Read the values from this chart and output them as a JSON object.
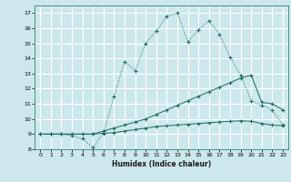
{
  "title": "",
  "xlabel": "Humidex (Indice chaleur)",
  "bg_color": "#cce8ec",
  "grid_color": "#ffffff",
  "line_color": "#1a6b5e",
  "xlim": [
    -0.5,
    23.5
  ],
  "ylim": [
    8,
    17.5
  ],
  "xticks": [
    0,
    1,
    2,
    3,
    4,
    5,
    6,
    7,
    8,
    9,
    10,
    11,
    12,
    13,
    14,
    15,
    16,
    17,
    18,
    19,
    20,
    21,
    22,
    23
  ],
  "yticks": [
    8,
    9,
    10,
    11,
    12,
    13,
    14,
    15,
    16,
    17
  ],
  "line1_x": [
    0,
    1,
    2,
    3,
    4,
    5,
    6,
    7,
    8,
    9,
    10,
    11,
    12,
    13,
    14,
    15,
    16,
    17,
    18,
    19,
    20,
    21,
    22,
    23
  ],
  "line1_y": [
    9,
    9,
    9,
    8.9,
    8.7,
    8.1,
    9.1,
    11.5,
    13.8,
    13.2,
    15.0,
    15.8,
    16.8,
    17.0,
    15.1,
    15.9,
    16.5,
    15.6,
    14.1,
    12.9,
    11.2,
    10.9,
    10.6,
    9.6
  ],
  "line2_x": [
    0,
    1,
    2,
    3,
    4,
    5,
    6,
    7,
    8,
    9,
    10,
    11,
    12,
    13,
    14,
    15,
    16,
    17,
    18,
    19,
    20,
    21,
    22,
    23
  ],
  "line2_y": [
    9.0,
    9.0,
    9.0,
    9.0,
    9.0,
    9.0,
    9.2,
    9.4,
    9.6,
    9.8,
    10.0,
    10.3,
    10.6,
    10.9,
    11.2,
    11.5,
    11.8,
    12.1,
    12.4,
    12.7,
    12.9,
    11.1,
    11.0,
    10.6
  ],
  "line3_x": [
    0,
    1,
    2,
    3,
    4,
    5,
    6,
    7,
    8,
    9,
    10,
    11,
    12,
    13,
    14,
    15,
    16,
    17,
    18,
    19,
    20,
    21,
    22,
    23
  ],
  "line3_y": [
    9.0,
    9.0,
    9.0,
    9.0,
    9.0,
    9.0,
    9.05,
    9.1,
    9.2,
    9.3,
    9.4,
    9.5,
    9.55,
    9.6,
    9.65,
    9.7,
    9.75,
    9.8,
    9.85,
    9.88,
    9.85,
    9.7,
    9.6,
    9.55
  ]
}
